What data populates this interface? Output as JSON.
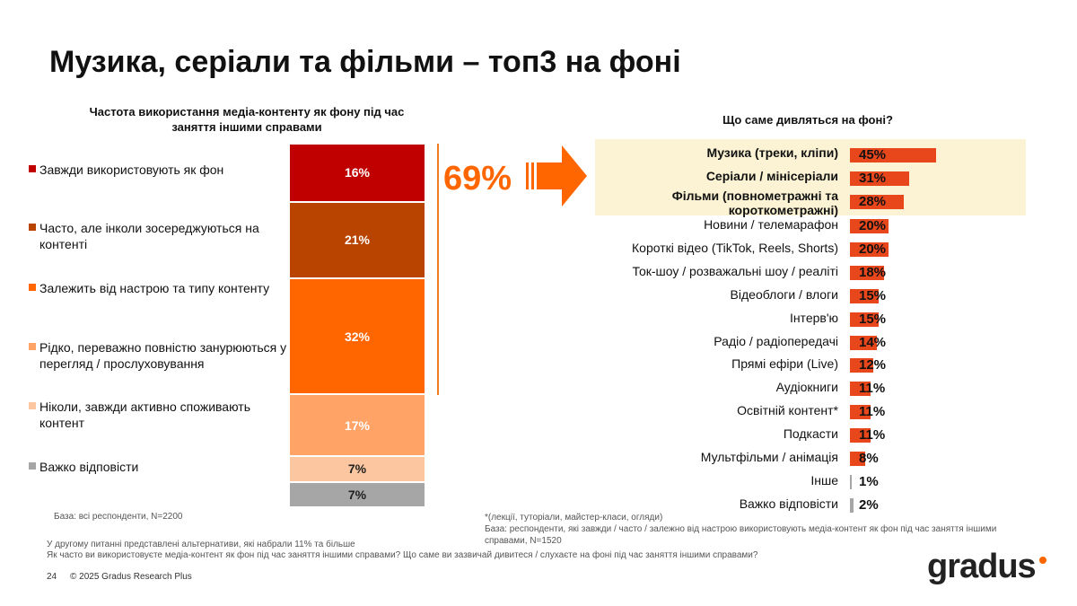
{
  "title": "Музика, серіали та фільми – топ3 на фоні",
  "left_chart": {
    "title_line1": "Частота використання медіа-контенту як фону під час",
    "title_line2": "заняття іншими справами",
    "base": "База: всі респонденти, N=2200"
  },
  "big_total": "69%",
  "right_chart": {
    "title": "Що саме дивляться на фоні?",
    "footnote": "*(лекції, туторіали, майстер-класи, огляди)",
    "base_line1": "База: респонденти, які завжди / часто / залежно від настрою використовують медіа-контент як фон під час заняття іншими",
    "base_line2": "справами, N=1520"
  },
  "footer": {
    "line1": "У другому питанні представлені альтернативи, які набрали 11% та більше",
    "line2": "Як часто ви використовуєте медіа-контент як фон під час заняття іншими справами? Що саме ви зазвичай дивитеся / слухаєте на фоні під час заняття іншими справами?",
    "page": "24",
    "copyright": "© 2025 Gradus Research Plus"
  },
  "logo": "gradus",
  "colors": {
    "accent": "#ff6600",
    "bar": "#e8471c",
    "highlight": "#fbf3d3"
  },
  "chart_data": [
    {
      "type": "bar",
      "stacked": true,
      "series": [
        {
          "name": "Завжди використовують як фон",
          "value": 16,
          "label": "16%",
          "color": "#c00000"
        },
        {
          "name": "Часто, але інколи зосереджуються на контенті",
          "value": 21,
          "label": "21%",
          "color": "#b84400"
        },
        {
          "name": "Залежить від настрою та типу контенту",
          "value": 32,
          "label": "32%",
          "color": "#ff6600"
        },
        {
          "name": "Рідко, переважно повністю занурюються у перегляд / прослуховування",
          "value": 17,
          "label": "17%",
          "color": "#ffa366"
        },
        {
          "name": "Ніколи, завжди активно споживають контент",
          "value": 7,
          "label": "7%",
          "color": "#fcc6a0"
        },
        {
          "name": "Важко відповісти",
          "value": 7,
          "label": "7%",
          "color": "#a6a6a6"
        }
      ]
    },
    {
      "type": "bar",
      "orientation": "horizontal",
      "categories": [
        "Музика (треки, кліпи)",
        "Серіали / мінісеріали",
        "Фільми (повнометражні та короткометражні)",
        "Новини / телемарафон",
        "Короткі відео (TikTok, Reels, Shorts)",
        "Ток-шоу / розважальні шоу / реаліті",
        "Відеоблоги / влоги",
        "Інтерв'ю",
        "Радіо / радіопередачі",
        "Прямі ефіри (Live)",
        "Аудіокниги",
        "Освітній контент*",
        "Подкасти",
        "Мультфільми / анімація",
        "Інше",
        "Важко відповісти"
      ],
      "values": [
        45,
        31,
        28,
        20,
        20,
        18,
        15,
        15,
        14,
        12,
        11,
        11,
        11,
        8,
        1,
        2
      ],
      "labels": [
        "45%",
        "31%",
        "28%",
        "20%",
        "20%",
        "18%",
        "15%",
        "15%",
        "14%",
        "12%",
        "11%",
        "11%",
        "11%",
        "8%",
        "1%",
        "2%"
      ],
      "highlighted": [
        true,
        true,
        true,
        false,
        false,
        false,
        false,
        false,
        false,
        false,
        false,
        false,
        false,
        false,
        false,
        false
      ]
    }
  ]
}
